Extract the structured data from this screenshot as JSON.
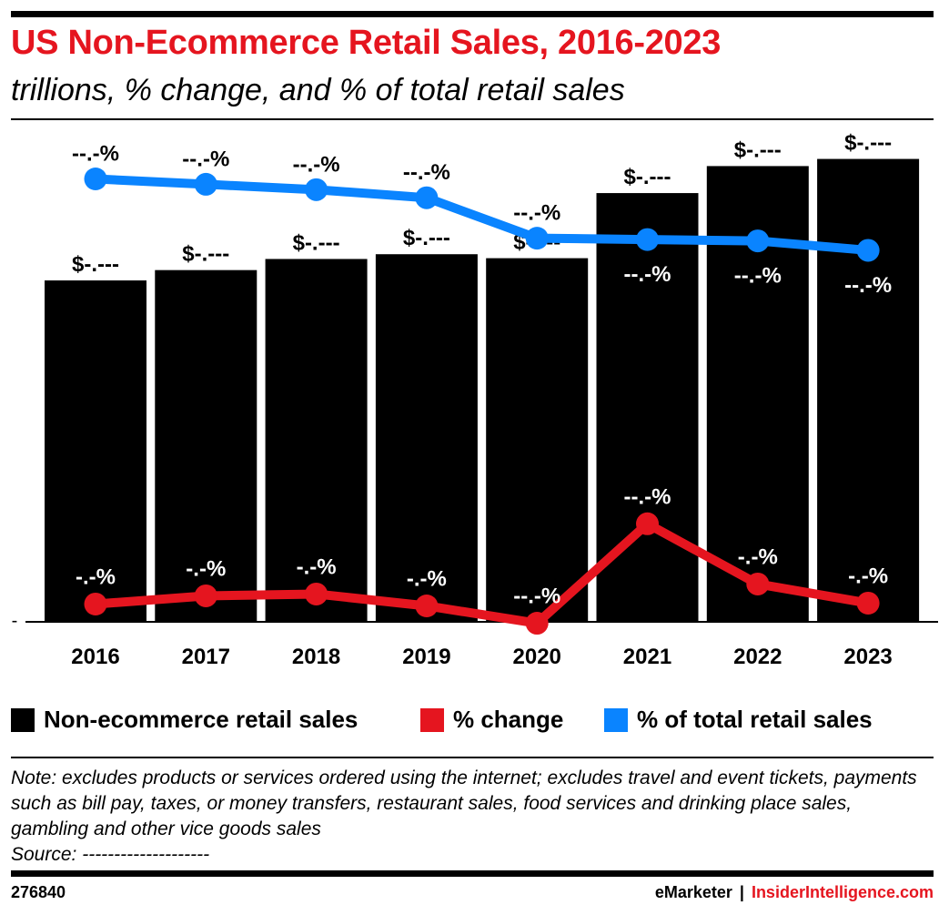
{
  "header": {
    "title": "US Non-Ecommerce Retail Sales, 2016-2023",
    "subtitle": "trillions, % change, and % of total retail sales"
  },
  "colors": {
    "bars": "#000000",
    "pct_change": "#e5151f",
    "pct_total": "#0a84ff",
    "title": "#e5151f"
  },
  "chart_data": {
    "type": "bar",
    "categories": [
      "2016",
      "2017",
      "2018",
      "2019",
      "2020",
      "2021",
      "2022",
      "2023"
    ],
    "y_axis_tick_label": "-",
    "series": [
      {
        "name": "Non-ecommerce retail sales",
        "kind": "bar",
        "values": [
          4.3,
          4.43,
          4.57,
          4.63,
          4.58,
          5.4,
          5.74,
          5.83
        ],
        "labels": [
          "$-.---",
          "$-.---",
          "$-.---",
          "$-.---",
          "$-.---",
          "$-.---",
          "$-.---",
          "$-.---"
        ]
      },
      {
        "name": "% change",
        "kind": "line",
        "values": [
          0.9,
          1.8,
          2.0,
          0.7,
          -1.2,
          9.7,
          3.1,
          1.0
        ],
        "labels": [
          "-.-%",
          "-.-%",
          "-.-%",
          "-.-%",
          "--.-%",
          "--.-%",
          "-.-%",
          "-.-%"
        ]
      },
      {
        "name": "% of total retail sales",
        "kind": "line",
        "values": [
          89.2,
          88.8,
          88.4,
          87.8,
          84.8,
          84.7,
          84.6,
          83.9
        ],
        "labels": [
          "--.-%",
          "--.-%",
          "--.-%",
          "--.-%",
          "--.-%",
          "--.-%",
          "--.-%",
          "--.-%"
        ]
      }
    ]
  },
  "legend": [
    {
      "label": "Non-ecommerce retail sales",
      "color": "#000000"
    },
    {
      "label": "% change",
      "color": "#e5151f"
    },
    {
      "label": "% of total retail sales",
      "color": "#0a84ff"
    }
  ],
  "note": "Note: excludes products or services ordered using the internet; excludes travel and event tickets, payments such as bill pay, taxes, or money transfers, restaurant sales, food services and drinking place sales, gambling and other vice goods sales",
  "source": "Source: --------------------",
  "footer": {
    "chart_id": "276840",
    "brand_left": "eMarketer",
    "separator": "|",
    "brand_right": "InsiderIntelligence.com"
  }
}
